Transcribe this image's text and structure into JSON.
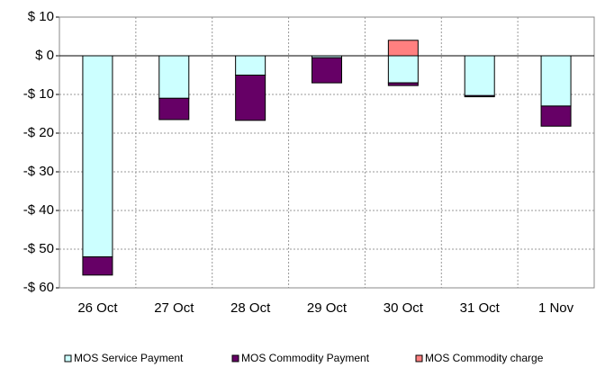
{
  "chart_data": {
    "type": "stacked-bar",
    "categories": [
      "26 Oct",
      "27 Oct",
      "28 Oct",
      "29 Oct",
      "30 Oct",
      "31 Oct",
      "1 Nov"
    ],
    "series": [
      {
        "name": "MOS Service Payment",
        "color": "#ccffff",
        "values": [
          -52,
          -11,
          -5,
          -0.5,
          -7,
          -10.3,
          -13
        ]
      },
      {
        "name": "MOS Commodity Payment",
        "color": "#660066",
        "values": [
          -4.7,
          -5.5,
          -11.7,
          -6.5,
          -0.7,
          -0.3,
          -5.2
        ]
      },
      {
        "name": "MOS Commodity charge",
        "color": "#ff8080",
        "values": [
          0,
          0,
          0,
          0,
          4,
          0,
          0
        ]
      }
    ],
    "ylim": [
      -60,
      10
    ],
    "yticks": [
      {
        "value": 10,
        "label": "$ 10"
      },
      {
        "value": 0,
        "label": "$ 0"
      },
      {
        "value": -10,
        "label": "-$ 10"
      },
      {
        "value": -20,
        "label": "-$ 20"
      },
      {
        "value": -30,
        "label": "-$ 30"
      },
      {
        "value": -40,
        "label": "-$ 40"
      },
      {
        "value": -50,
        "label": "-$ 50"
      },
      {
        "value": -60,
        "label": "-$ 60"
      }
    ],
    "grid": true
  }
}
